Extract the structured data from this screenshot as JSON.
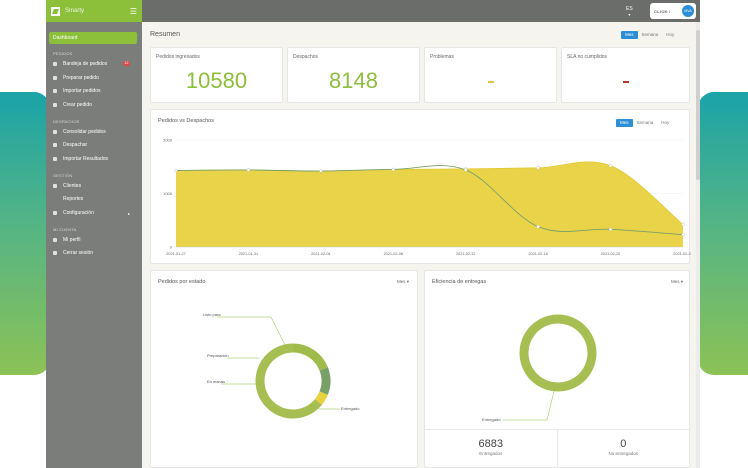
{
  "app": {
    "brand": "Smarty"
  },
  "sidebar": {
    "active": "Dashboard",
    "sections": [
      {
        "title": "PEDIDOS",
        "items": [
          {
            "label": "Bandeja de pedidos",
            "badge": "12"
          },
          {
            "label": "Preparar pedido"
          },
          {
            "label": "Importar pedidos"
          },
          {
            "label": "Crear pedido"
          }
        ]
      },
      {
        "title": "DESPACHOS",
        "items": [
          {
            "label": "Consolidar pedidos"
          },
          {
            "label": "Despachar"
          },
          {
            "label": "Importar Resultados"
          }
        ]
      },
      {
        "title": "GESTIÓN",
        "items": [
          {
            "label": "Clientes"
          },
          {
            "label": "Reportes"
          },
          {
            "label": "Configuración"
          }
        ]
      },
      {
        "title": "MI CUENTA",
        "items": [
          {
            "label": "Mi perfil"
          },
          {
            "label": "Cerrar sesión"
          }
        ]
      }
    ]
  },
  "topbar": {
    "lang": "ES",
    "client": "CLICK / ",
    "avatar": "MVA"
  },
  "resumen": {
    "title": "Resumen",
    "periods": [
      "Mes",
      "Semana",
      "Hoy"
    ],
    "kpis": [
      {
        "label": "Pedidos ingresados",
        "value": "10580"
      },
      {
        "label": "Despachos",
        "value": "8148"
      },
      {
        "label": "Problemas",
        "value": "",
        "dash_color": "#e8c53a"
      },
      {
        "label": "SLA no cumplidos",
        "value": "",
        "dash_color": "#b23a2a"
      }
    ]
  },
  "line_card": {
    "title": "Pedidos vs Despachos",
    "periods": [
      "Mes",
      "Semana",
      "Hoy"
    ]
  },
  "donut_left": {
    "title": "Pedidos por estado",
    "filter": "Mes"
  },
  "donut_right": {
    "title": "Eficiencia de entregas",
    "filter": "Mes",
    "stats": [
      {
        "value": "6883",
        "label": "Entregados"
      },
      {
        "value": "0",
        "label": "No entregados"
      }
    ]
  },
  "colors": {
    "accent": "#8cbf3a",
    "blue": "#2c8fd6",
    "yellow": "#e8d13f",
    "olive": "#9fbb4a"
  },
  "chart_data": [
    {
      "type": "area",
      "title": "Pedidos vs Despachos",
      "x": [
        "2021-01-27",
        "2021-01-31",
        "2021-02-04",
        "2021-02-08",
        "2021-02-12",
        "2021-02-16",
        "2021-02-20",
        "2021-02-24"
      ],
      "y_ticks": [
        "0",
        "1000",
        "2000"
      ],
      "ylim": [
        0,
        2000
      ],
      "series": [
        {
          "values": [
            1430,
            1440,
            1420,
            1450,
            1460,
            1480,
            1520,
            420
          ]
        },
        {
          "values": [
            1430,
            1440,
            1420,
            1450,
            1440,
            380,
            330,
            230
          ]
        }
      ]
    },
    {
      "type": "pie",
      "title": "Pedidos por estado",
      "labels": [
        "Listo para",
        "Preparación",
        "En manas",
        "Entregado"
      ],
      "values": [
        19,
        12,
        5,
        64
      ]
    },
    {
      "type": "pie",
      "title": "Eficiencia de entregas",
      "labels": [
        "Entregado"
      ],
      "values": [
        100
      ]
    }
  ]
}
